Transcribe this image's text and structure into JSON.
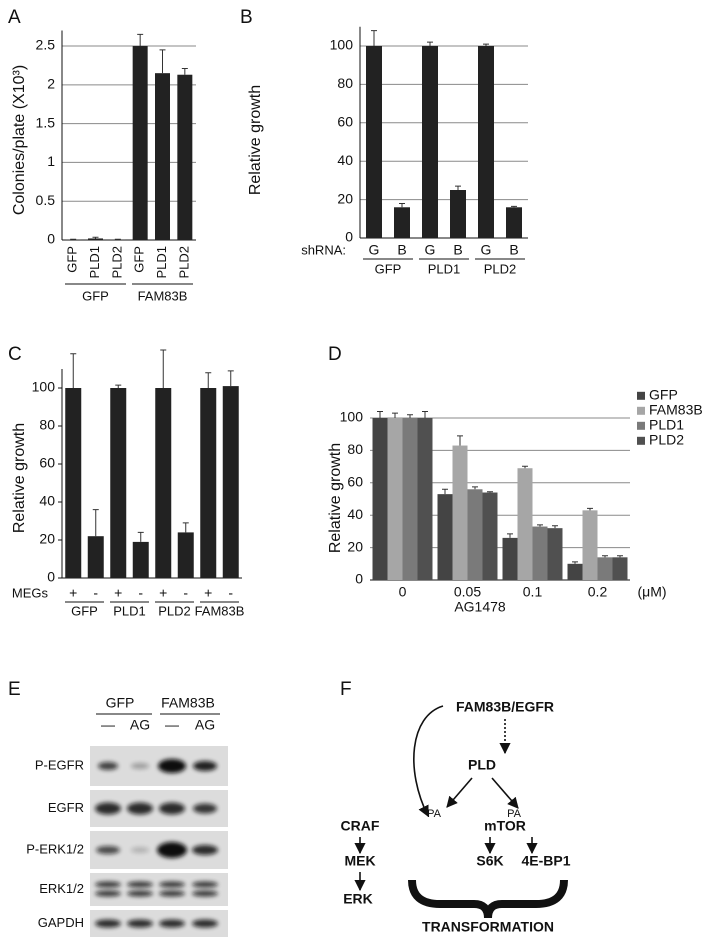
{
  "panel_labels": [
    "A",
    "B",
    "C",
    "D",
    "E",
    "F"
  ],
  "chart_data": [
    {
      "type": "bar",
      "y_label": "Colonies/plate (X10³)",
      "categories": [
        "GFP",
        "PLD1",
        "PLD2",
        "GFP",
        "PLD1",
        "PLD2"
      ],
      "groups": [
        "GFP",
        "FAM83B"
      ],
      "values": [
        0.005,
        0.02,
        0.005,
        2.5,
        2.15,
        2.13
      ],
      "errors": [
        0.005,
        0.015,
        0.005,
        0.15,
        0.3,
        0.08
      ],
      "color": "#222222",
      "ylim": [
        0,
        2.7
      ],
      "yticks": [
        0,
        0.5,
        1,
        1.5,
        2,
        2.5
      ],
      "grid": true
    },
    {
      "type": "bar",
      "y_label": "Relative growth",
      "row_label": "shRNA:",
      "categories": [
        "G",
        "B",
        "G",
        "B",
        "G",
        "B"
      ],
      "groups": [
        "GFP",
        "PLD1",
        "PLD2"
      ],
      "values": [
        100,
        16,
        100,
        25,
        100,
        16
      ],
      "errors": [
        8,
        2,
        2,
        2,
        1,
        0.5
      ],
      "color": "#222222",
      "ylim": [
        0,
        110
      ],
      "yticks": [
        0,
        20,
        40,
        60,
        80,
        100
      ],
      "grid": true
    },
    {
      "type": "bar",
      "y_label": "Relative growth",
      "row_label": "MEGs",
      "categories": [
        "+",
        "-",
        "+",
        "-",
        "+",
        "-",
        "+",
        "-"
      ],
      "groups": [
        "GFP",
        "PLD1",
        "PLD2",
        "FAM83B"
      ],
      "values": [
        100,
        22,
        100,
        19,
        100,
        24,
        100,
        101
      ],
      "errors": [
        18,
        14,
        1.5,
        5,
        20,
        5,
        8,
        8
      ],
      "color": "#222222",
      "ylim": [
        0,
        110
      ],
      "yticks": [
        0,
        20,
        40,
        60,
        80,
        100
      ],
      "grid": false
    },
    {
      "type": "grouped_bar",
      "y_label": "Relative growth",
      "x_label": "AG1478",
      "x_unit": "(μM)",
      "categories": [
        "0",
        "0.05",
        "0.1",
        "0.2"
      ],
      "series": [
        {
          "name": "GFP",
          "color": "#444444",
          "values": [
            100,
            53,
            26,
            10
          ],
          "errors": [
            4,
            3,
            2.5,
            1.2
          ]
        },
        {
          "name": "FAM83B",
          "color": "#a6a6a6",
          "values": [
            100,
            83,
            69,
            43
          ],
          "errors": [
            3,
            6,
            1.2,
            1.2
          ]
        },
        {
          "name": "PLD1",
          "color": "#7a7a7a",
          "values": [
            100,
            56,
            33,
            14
          ],
          "errors": [
            2,
            1.5,
            1,
            1
          ]
        },
        {
          "name": "PLD2",
          "color": "#505050",
          "values": [
            100,
            54,
            32,
            14
          ],
          "errors": [
            4,
            0.5,
            1.5,
            1
          ]
        }
      ],
      "ylim": [
        0,
        110
      ],
      "yticks": [
        0,
        20,
        40,
        60,
        80,
        100
      ],
      "grid": true,
      "legend": "right"
    }
  ],
  "blot": {
    "groups": [
      "GFP",
      "FAM83B"
    ],
    "lanes": [
      "—",
      "AG",
      "—",
      "AG"
    ],
    "rows": [
      "P-EGFR",
      "EGFR",
      "P-ERK1/2",
      "ERK1/2",
      "GAPDH"
    ]
  },
  "pathway": {
    "nodes": [
      "FAM83B/EGFR",
      "PLD",
      "CRAF",
      "mTOR",
      "MEK",
      "S6K",
      "4E-BP1",
      "ERK"
    ],
    "labels": [
      "PA",
      "PA"
    ],
    "outcome": "TRANSFORMATION"
  }
}
